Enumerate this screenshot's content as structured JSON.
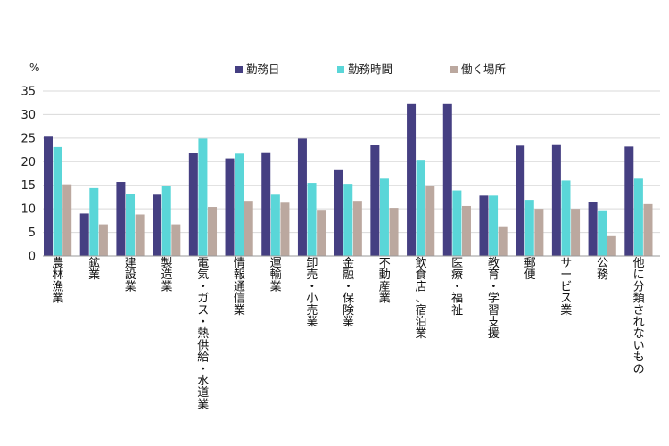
{
  "chart_data": {
    "type": "bar",
    "title": "",
    "ylabel": "%",
    "xlabel": "",
    "ylim": [
      0,
      35
    ],
    "yticks": [
      0,
      5,
      10,
      15,
      20,
      25,
      30,
      35
    ],
    "legend_position": "top",
    "categories": [
      "農林漁業",
      "鉱業",
      "建設業",
      "製造業",
      "電気・ガス・熱供給・水道業",
      "情報通信業",
      "運輸業",
      "卸売・小売業",
      "金融・保険業",
      "不動産業",
      "飲食店、宿泊業",
      "医療・福祉",
      "教育・学習支援",
      "郵便",
      "サービス業",
      "公務",
      "他に分類されないもの"
    ],
    "series": [
      {
        "name": "勤務日",
        "color": "#453f82",
        "values": [
          25.3,
          9.0,
          15.7,
          13.0,
          21.8,
          20.7,
          22.0,
          24.9,
          18.2,
          23.5,
          32.2,
          32.2,
          12.8,
          23.4,
          23.7,
          11.4,
          23.2
        ]
      },
      {
        "name": "勤務時間",
        "color": "#5ad6d8",
        "values": [
          23.1,
          14.4,
          13.1,
          14.9,
          24.9,
          21.7,
          13.0,
          15.5,
          15.3,
          16.4,
          20.4,
          13.9,
          12.8,
          11.9,
          16.0,
          9.7,
          16.4
        ]
      },
      {
        "name": "働く場所",
        "color": "#bba89f",
        "values": [
          15.2,
          6.7,
          8.8,
          6.7,
          10.4,
          11.7,
          11.3,
          9.8,
          11.7,
          10.2,
          14.9,
          10.6,
          6.3,
          10.0,
          10.0,
          4.2,
          11.0
        ]
      }
    ]
  }
}
